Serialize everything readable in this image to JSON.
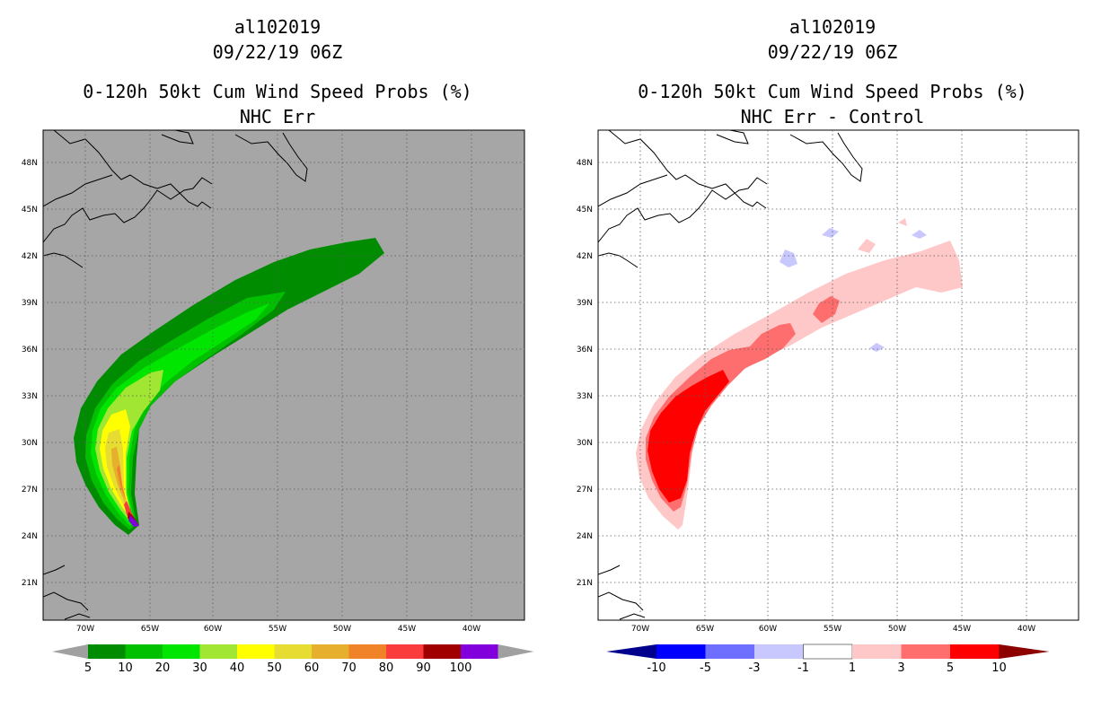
{
  "panels": [
    {
      "id": "left",
      "storm_id": "al102019",
      "date": "09/22/19 06Z",
      "product": "0-120h 50kt Cum Wind Speed Probs (%)",
      "subtitle": "NHC Err",
      "background": "#a6a6a6",
      "colorbar": {
        "ticks": [
          "5",
          "10",
          "20",
          "30",
          "40",
          "50",
          "60",
          "70",
          "80",
          "90",
          "100"
        ],
        "colors": [
          "#008c00",
          "#00c000",
          "#00e600",
          "#a0e632",
          "#ffff00",
          "#e6dc32",
          "#e6af2d",
          "#f08228",
          "#fa3c3c",
          "#a00000",
          "#8200dc"
        ],
        "end_color": "#a0a0a0"
      }
    },
    {
      "id": "right",
      "storm_id": "al102019",
      "date": "09/22/19 06Z",
      "product": "0-120h 50kt Cum Wind Speed Probs (%)",
      "subtitle": "NHC Err - Control",
      "background": "#ffffff",
      "colorbar": {
        "ticks": [
          "-10",
          "-5",
          "-3",
          "-1",
          "1",
          "3",
          "5",
          "10"
        ],
        "colors": [
          "#00008c",
          "#0000ff",
          "#6e6eff",
          "#c8c8ff",
          "#ffffff",
          "#ffc8c8",
          "#ff6e6e",
          "#ff0000",
          "#8c0000"
        ]
      }
    }
  ],
  "map": {
    "lat_labels": [
      "48N",
      "45N",
      "42N",
      "39N",
      "36N",
      "33N",
      "30N",
      "27N",
      "24N",
      "21N"
    ],
    "lon_labels": [
      "70W",
      "65W",
      "60W",
      "55W",
      "50W",
      "45W",
      "40W"
    ]
  }
}
